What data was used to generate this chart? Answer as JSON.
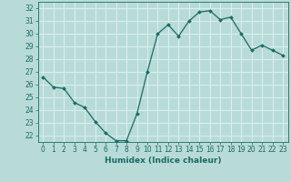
{
  "x": [
    0,
    1,
    2,
    3,
    4,
    5,
    6,
    7,
    8,
    9,
    10,
    11,
    12,
    13,
    14,
    15,
    16,
    17,
    18,
    19,
    20,
    21,
    22,
    23
  ],
  "y": [
    26.6,
    25.8,
    25.7,
    24.6,
    24.2,
    23.1,
    22.2,
    21.6,
    21.6,
    23.7,
    27.0,
    30.0,
    30.7,
    29.8,
    31.0,
    31.7,
    31.8,
    31.1,
    31.3,
    30.0,
    28.7,
    29.1,
    28.7,
    28.3
  ],
  "bg_color": "#b8dbd8",
  "grid_color": "#d8eeec",
  "line_color": "#1a6b60",
  "marker_color": "#1a6b60",
  "ylabel_ticks": [
    22,
    23,
    24,
    25,
    26,
    27,
    28,
    29,
    30,
    31,
    32
  ],
  "xlabel": "Humidex (Indice chaleur)",
  "xlabel_fontsize": 6.5,
  "tick_fontsize": 5.5,
  "ylim": [
    21.5,
    32.5
  ],
  "xlim": [
    -0.5,
    23.5
  ]
}
